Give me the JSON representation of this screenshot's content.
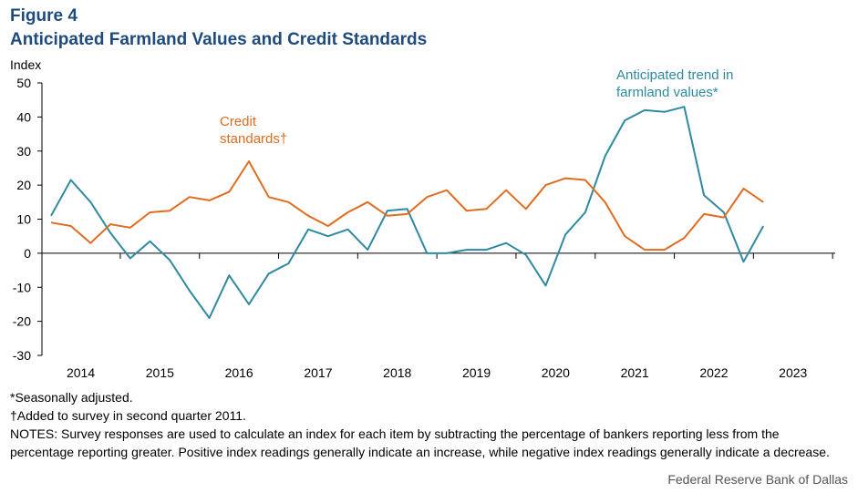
{
  "figure": {
    "label": "Figure 4",
    "title": "Anticipated Farmland Values and Credit Standards"
  },
  "chart_data": {
    "type": "line",
    "title": "Anticipated Farmland Values and Credit Standards",
    "ylabel": "Index",
    "xlabel": "",
    "ylim": [
      -30,
      50
    ],
    "yticks": [
      50,
      40,
      30,
      20,
      10,
      0,
      -10,
      -20,
      -30
    ],
    "year_labels": [
      "2014",
      "2015",
      "2016",
      "2017",
      "2018",
      "2019",
      "2020",
      "2021",
      "2022",
      "2023"
    ],
    "x_start": "2014 Q1",
    "x_end": "2023 Q4",
    "series": [
      {
        "name": "farmland",
        "label_lines": [
          "Anticipated trend in",
          "farmland values*"
        ],
        "color": "#2e8aa0",
        "start_index": 0,
        "values": [
          11,
          21.5,
          15,
          6,
          -1.5,
          3.5,
          -2,
          -11,
          -19,
          -6.5,
          -15,
          -6,
          -3,
          7,
          5,
          7,
          1,
          12.5,
          13,
          0,
          0,
          1,
          1,
          3,
          -0.5,
          -9.5,
          5.5,
          12,
          28.5,
          39,
          42,
          41.5,
          43,
          17,
          12,
          -2.5,
          8
        ]
      },
      {
        "name": "credit",
        "label_lines": [
          "Credit",
          "standards†"
        ],
        "color": "#e06c1f",
        "start_index": 0,
        "values": [
          9,
          8,
          3,
          8.5,
          7.5,
          12,
          12.5,
          16.5,
          15.5,
          18,
          27,
          16.5,
          15,
          11,
          8,
          12,
          15,
          11,
          11.5,
          16.5,
          18.5,
          12.5,
          13,
          18.5,
          13,
          20,
          22,
          21.5,
          15,
          5,
          1,
          1,
          4.5,
          11.5,
          10.5,
          19,
          15
        ]
      }
    ]
  },
  "notes": {
    "seasonal": "*Seasonally adjusted.",
    "added": "†Added to survey in second quarter 2011.",
    "notes_text": "NOTES: Survey responses are used to calculate an index for each item by subtracting the percentage of bankers reporting less from the percentage reporting greater. Positive index readings generally indicate an increase, while negative index readings generally indicate a decrease."
  },
  "source": "Federal Reserve Bank of Dallas"
}
